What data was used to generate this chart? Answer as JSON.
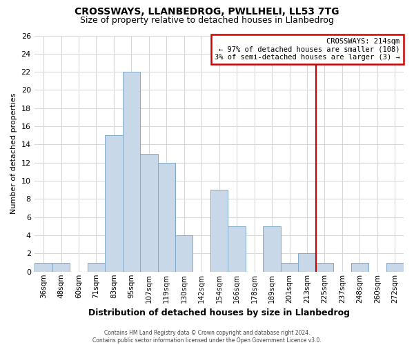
{
  "title": "CROSSWAYS, LLANBEDROG, PWLLHELI, LL53 7TG",
  "subtitle": "Size of property relative to detached houses in Llanbedrog",
  "xlabel": "Distribution of detached houses by size in Llanbedrog",
  "ylabel": "Number of detached properties",
  "categories": [
    "36sqm",
    "48sqm",
    "60sqm",
    "71sqm",
    "83sqm",
    "95sqm",
    "107sqm",
    "119sqm",
    "130sqm",
    "142sqm",
    "154sqm",
    "166sqm",
    "178sqm",
    "189sqm",
    "201sqm",
    "213sqm",
    "225sqm",
    "237sqm",
    "248sqm",
    "260sqm",
    "272sqm"
  ],
  "values": [
    1,
    1,
    0,
    1,
    15,
    22,
    13,
    12,
    4,
    0,
    9,
    5,
    0,
    5,
    1,
    2,
    1,
    0,
    1,
    0,
    1
  ],
  "bar_color": "#c8d8e8",
  "bar_edge_color": "#7faac8",
  "highlight_line_color": "#cc0000",
  "highlight_index": 15,
  "ylim": [
    0,
    26
  ],
  "yticks": [
    0,
    2,
    4,
    6,
    8,
    10,
    12,
    14,
    16,
    18,
    20,
    22,
    24,
    26
  ],
  "annotation_title": "CROSSWAYS: 214sqm",
  "annotation_line1": "← 97% of detached houses are smaller (108)",
  "annotation_line2": "3% of semi-detached houses are larger (3) →",
  "annotation_box_edge_color": "#cc0000",
  "annotation_box_facecolor": "#ffffff",
  "footer_line1": "Contains HM Land Registry data © Crown copyright and database right 2024.",
  "footer_line2": "Contains public sector information licensed under the Open Government Licence v3.0.",
  "background_color": "#ffffff",
  "grid_color": "#d8d8d8",
  "title_fontsize": 10,
  "subtitle_fontsize": 9
}
